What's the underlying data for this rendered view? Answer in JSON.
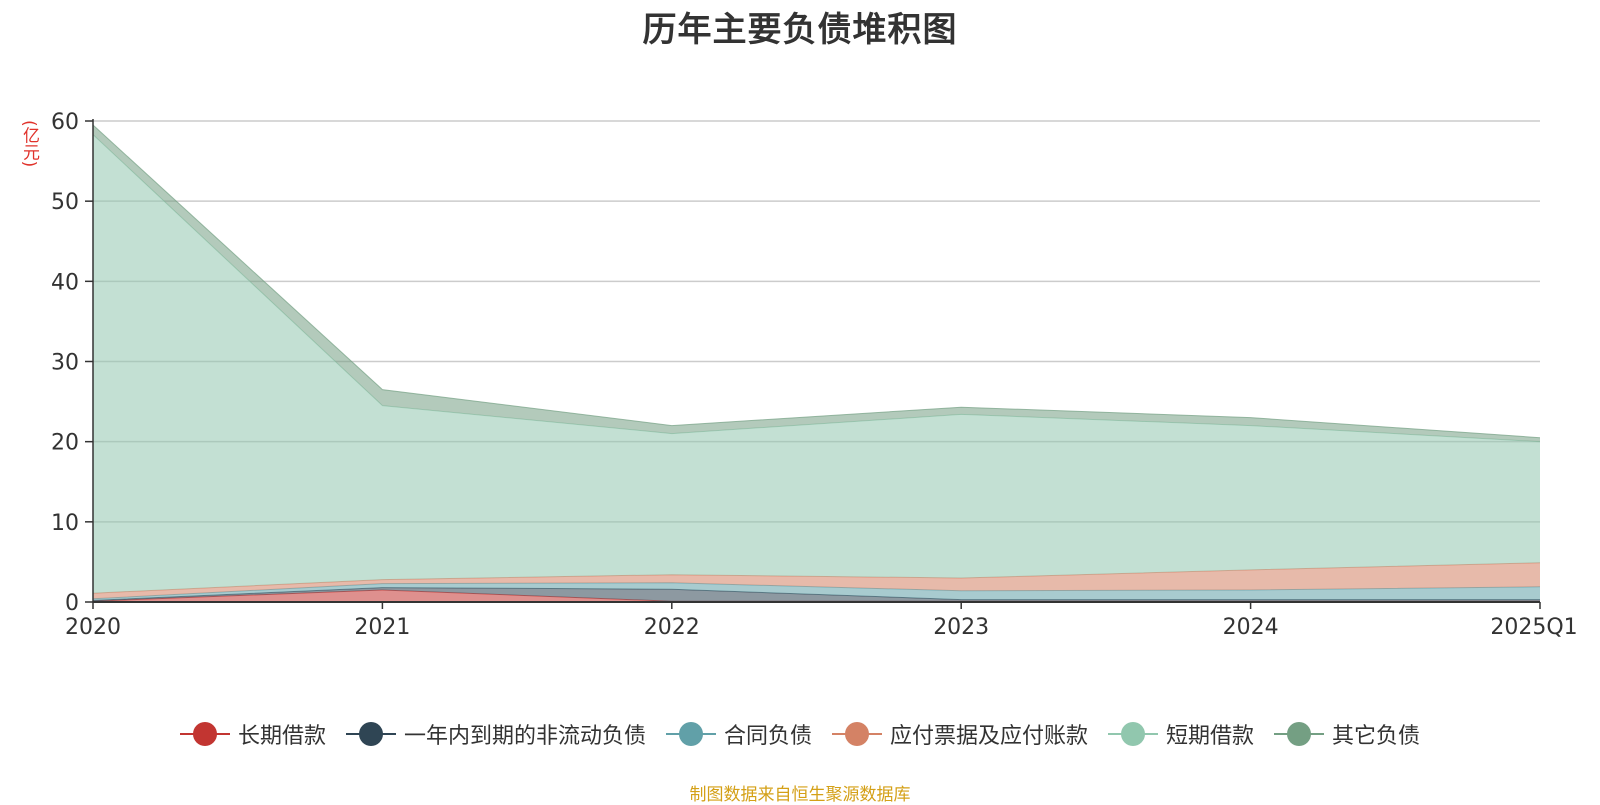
{
  "title": "历年主要负债堆积图",
  "unit": "(亿元)",
  "source": "制图数据来自恒生聚源数据库",
  "chart_data": {
    "type": "area",
    "stacked": true,
    "title": "历年主要负债堆积图",
    "ylabel": "(亿元)",
    "xlabel": "",
    "categories": [
      "2020",
      "2021",
      "2022",
      "2023",
      "2024",
      "2025Q1"
    ],
    "ylim": [
      0,
      60
    ],
    "yticks": [
      0,
      10,
      20,
      30,
      40,
      50,
      60
    ],
    "grid": true,
    "legend_position": "bottom",
    "series": [
      {
        "name": "长期借款",
        "color": "#c23531",
        "values": [
          0.1,
          1.5,
          0.1,
          0.1,
          0.1,
          0.1
        ]
      },
      {
        "name": "一年内到期的非流动负债",
        "color": "#2f4554",
        "values": [
          0.1,
          0.3,
          1.5,
          0.2,
          0.2,
          0.2
        ]
      },
      {
        "name": "合同负债",
        "color": "#61a0a8",
        "values": [
          0.2,
          0.5,
          0.8,
          1.1,
          1.2,
          1.6
        ]
      },
      {
        "name": "应付票据及应付账款",
        "color": "#d48265",
        "values": [
          0.7,
          0.5,
          1.0,
          1.6,
          2.5,
          3.0
        ]
      },
      {
        "name": "短期借款",
        "color": "#91c7ae",
        "values": [
          57.2,
          21.7,
          17.6,
          20.4,
          18.0,
          15.1
        ]
      },
      {
        "name": "其它负债",
        "color": "#749f83",
        "values": [
          1.2,
          2.0,
          1.0,
          0.9,
          1.0,
          0.5
        ]
      }
    ]
  }
}
